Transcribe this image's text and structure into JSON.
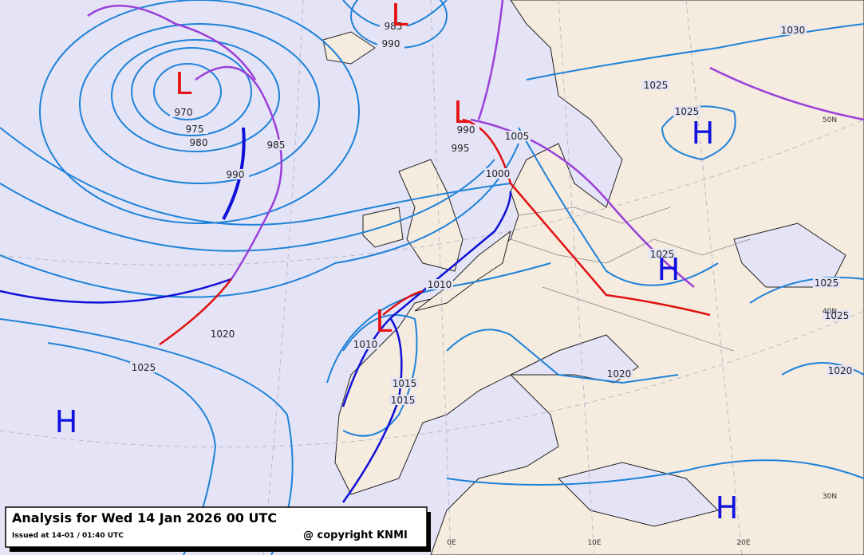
{
  "header": {
    "title": "Analysis for Wed 14 Jan 2026 00 UTC",
    "issued": "Issued at 14-01 / 01:40 UTC",
    "copyright": "@ copyright KNMI"
  },
  "isobar_labels": [
    "970",
    "975",
    "980",
    "985",
    "990",
    "985",
    "990",
    "990",
    "995",
    "1000",
    "1005",
    "1010",
    "1010",
    "1015",
    "1015",
    "1020",
    "1025",
    "1020",
    "1025",
    "1025",
    "1025",
    "1025",
    "1025",
    "1020",
    "1030"
  ],
  "lows": [
    "L",
    "L",
    "L",
    "L"
  ],
  "highs": [
    "H",
    "H",
    "H",
    "H"
  ],
  "grid_labels": [
    "50N",
    "40N",
    "30N",
    "0E",
    "10E",
    "20E"
  ]
}
